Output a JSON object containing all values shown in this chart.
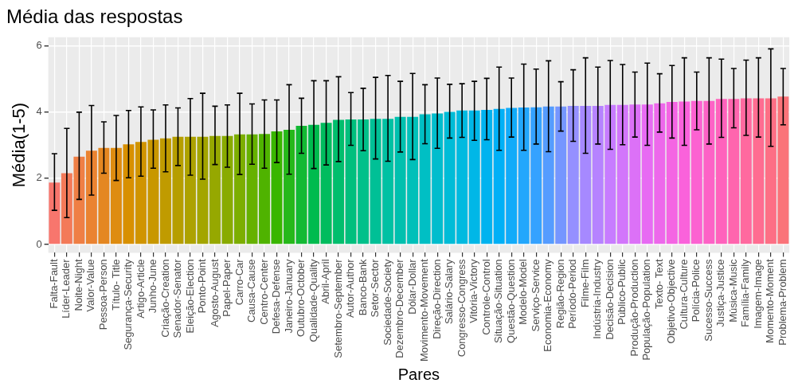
{
  "chart_data": {
    "type": "bar",
    "title": "Média das respostas",
    "xlabel": "Pares",
    "ylabel": "Média(1-5)",
    "categories": [
      "Falta-Fault",
      "Líder-Leader",
      "Noite-Night",
      "Valor-Value",
      "Pessoa-Person",
      "Título- Title",
      "Segurança-Security",
      "Artigo-Article",
      "Junho-June",
      "Criação-Creation",
      "Senador-Senator",
      "Eleição-Election",
      "Ponto-Point",
      "Agosto-August",
      "Papel-Paper",
      "Carro-Car",
      "Causa-Cause",
      "Centro-Center",
      "Defesa-Defense",
      "Janeiro-January",
      "Outubro-October",
      "Qualidade-Quality",
      "Abril-April",
      "Setembro-September",
      "Autor-Author",
      "Banco-Bank",
      "Setor-Sector",
      "Sociedade-Society",
      "Dezembro-December",
      "Dólar-Dollar",
      "Movimento-Movement",
      "Direção-Direction",
      "Salário-Salary",
      "Congresso-Congress",
      "Vitória-Victory",
      "Controle-Control",
      "Situação-Situation",
      "Questão-Question",
      "Modelo-Model",
      "Serviço-Service",
      "Economia-Economy",
      "Região-Region",
      "Período-Period",
      "Filme-Film",
      "Indústria-Industry",
      "Decisão-Decision",
      "Público-Public",
      "Produção-Production",
      "População-Population",
      "Texto- Text",
      "Objetivo-Objective",
      "Cultura-Culture",
      "Polícia-Police",
      "Sucesso-Success",
      "Justiça-Justice",
      "Música-Music",
      "Família-Family",
      "Imagem-Image",
      "Momento-Moment",
      "Problema-Problem"
    ],
    "values": [
      1.87,
      2.15,
      2.65,
      2.83,
      2.91,
      2.91,
      3.02,
      3.09,
      3.16,
      3.2,
      3.25,
      3.25,
      3.25,
      3.27,
      3.27,
      3.32,
      3.32,
      3.33,
      3.41,
      3.46,
      3.58,
      3.61,
      3.67,
      3.76,
      3.77,
      3.77,
      3.79,
      3.79,
      3.85,
      3.85,
      3.93,
      3.95,
      4.0,
      4.04,
      4.04,
      4.06,
      4.09,
      4.12,
      4.13,
      4.14,
      4.16,
      4.16,
      4.18,
      4.18,
      4.18,
      4.21,
      4.21,
      4.22,
      4.22,
      4.26,
      4.3,
      4.31,
      4.33,
      4.33,
      4.39,
      4.39,
      4.41,
      4.41,
      4.41,
      4.46
    ],
    "colors": [
      "#F8766D",
      "#F37A59",
      "#EF7F45",
      "#EA8331",
      "#E48721",
      "#DE8C10",
      "#D89000",
      "#D09400",
      "#C89700",
      "#C09B00",
      "#B69E00",
      "#ADA200",
      "#A3A500",
      "#96A800",
      "#89AB00",
      "#7CAE00",
      "#66B100",
      "#4FB300",
      "#39B600",
      "#26B81A",
      "#13B934",
      "#00BB4E",
      "#00BC5E",
      "#00BE6D",
      "#00BF7D",
      "#00C08A",
      "#00C096",
      "#00C1A3",
      "#00C0AE",
      "#00C0B9",
      "#00BFC4",
      "#00BDCD",
      "#00BCD7",
      "#00BAE0",
      "#00B7E7",
      "#00B3EF",
      "#00B0F6",
      "#12ABF9",
      "#23A7FC",
      "#35A2FF",
      "#559CFF",
      "#7596FF",
      "#9590FF",
      "#A689FF",
      "#B683FF",
      "#C77CFF",
      "#D276FB",
      "#DC71F7",
      "#E76BF3",
      "#ED68EB",
      "#F465E3",
      "#FA62DB",
      "#FC62D1",
      "#FD62C6",
      "#FF62BC",
      "#FF65AE",
      "#FF699F",
      "#FF6C91",
      "#FD6F85",
      "#FA7379"
    ],
    "errors": [
      [
        1.03,
        2.74
      ],
      [
        0.81,
        3.5
      ],
      [
        1.36,
        3.99
      ],
      [
        1.49,
        4.19
      ],
      [
        2.15,
        3.7
      ],
      [
        1.93,
        3.89
      ],
      [
        2.01,
        4.04
      ],
      [
        2.06,
        4.15
      ],
      [
        2.3,
        4.06
      ],
      [
        2.19,
        4.21
      ],
      [
        2.38,
        4.12
      ],
      [
        2.09,
        4.4
      ],
      [
        1.97,
        4.56
      ],
      [
        2.41,
        4.17
      ],
      [
        2.33,
        4.21
      ],
      [
        2.11,
        4.56
      ],
      [
        2.42,
        4.24
      ],
      [
        2.3,
        4.36
      ],
      [
        2.47,
        4.36
      ],
      [
        2.12,
        4.82
      ],
      [
        2.75,
        4.41
      ],
      [
        2.29,
        4.94
      ],
      [
        2.4,
        4.94
      ],
      [
        2.5,
        5.06
      ],
      [
        2.99,
        4.58
      ],
      [
        2.83,
        4.71
      ],
      [
        2.58,
        5.04
      ],
      [
        2.51,
        5.1
      ],
      [
        2.79,
        4.92
      ],
      [
        2.56,
        5.16
      ],
      [
        3.04,
        4.82
      ],
      [
        2.9,
        5.02
      ],
      [
        3.21,
        4.83
      ],
      [
        3.23,
        4.85
      ],
      [
        3.14,
        4.92
      ],
      [
        3.16,
        5.01
      ],
      [
        2.84,
        5.35
      ],
      [
        3.24,
        5.02
      ],
      [
        2.84,
        5.44
      ],
      [
        3.03,
        5.29
      ],
      [
        2.8,
        5.54
      ],
      [
        3.42,
        4.91
      ],
      [
        3.11,
        5.27
      ],
      [
        2.75,
        5.63
      ],
      [
        3.03,
        5.35
      ],
      [
        2.87,
        5.55
      ],
      [
        3.01,
        5.43
      ],
      [
        3.24,
        5.2
      ],
      [
        2.99,
        5.47
      ],
      [
        3.39,
        5.15
      ],
      [
        3.21,
        5.4
      ],
      [
        2.99,
        5.63
      ],
      [
        3.46,
        5.2
      ],
      [
        3.03,
        5.63
      ],
      [
        3.23,
        5.59
      ],
      [
        3.52,
        5.31
      ],
      [
        3.29,
        5.56
      ],
      [
        3.24,
        5.63
      ],
      [
        2.96,
        5.9
      ],
      [
        3.61,
        5.31
      ]
    ],
    "ylim": [
      -0.25,
      6.25
    ],
    "yticks": [
      0,
      2,
      4,
      6
    ],
    "grid": true
  }
}
